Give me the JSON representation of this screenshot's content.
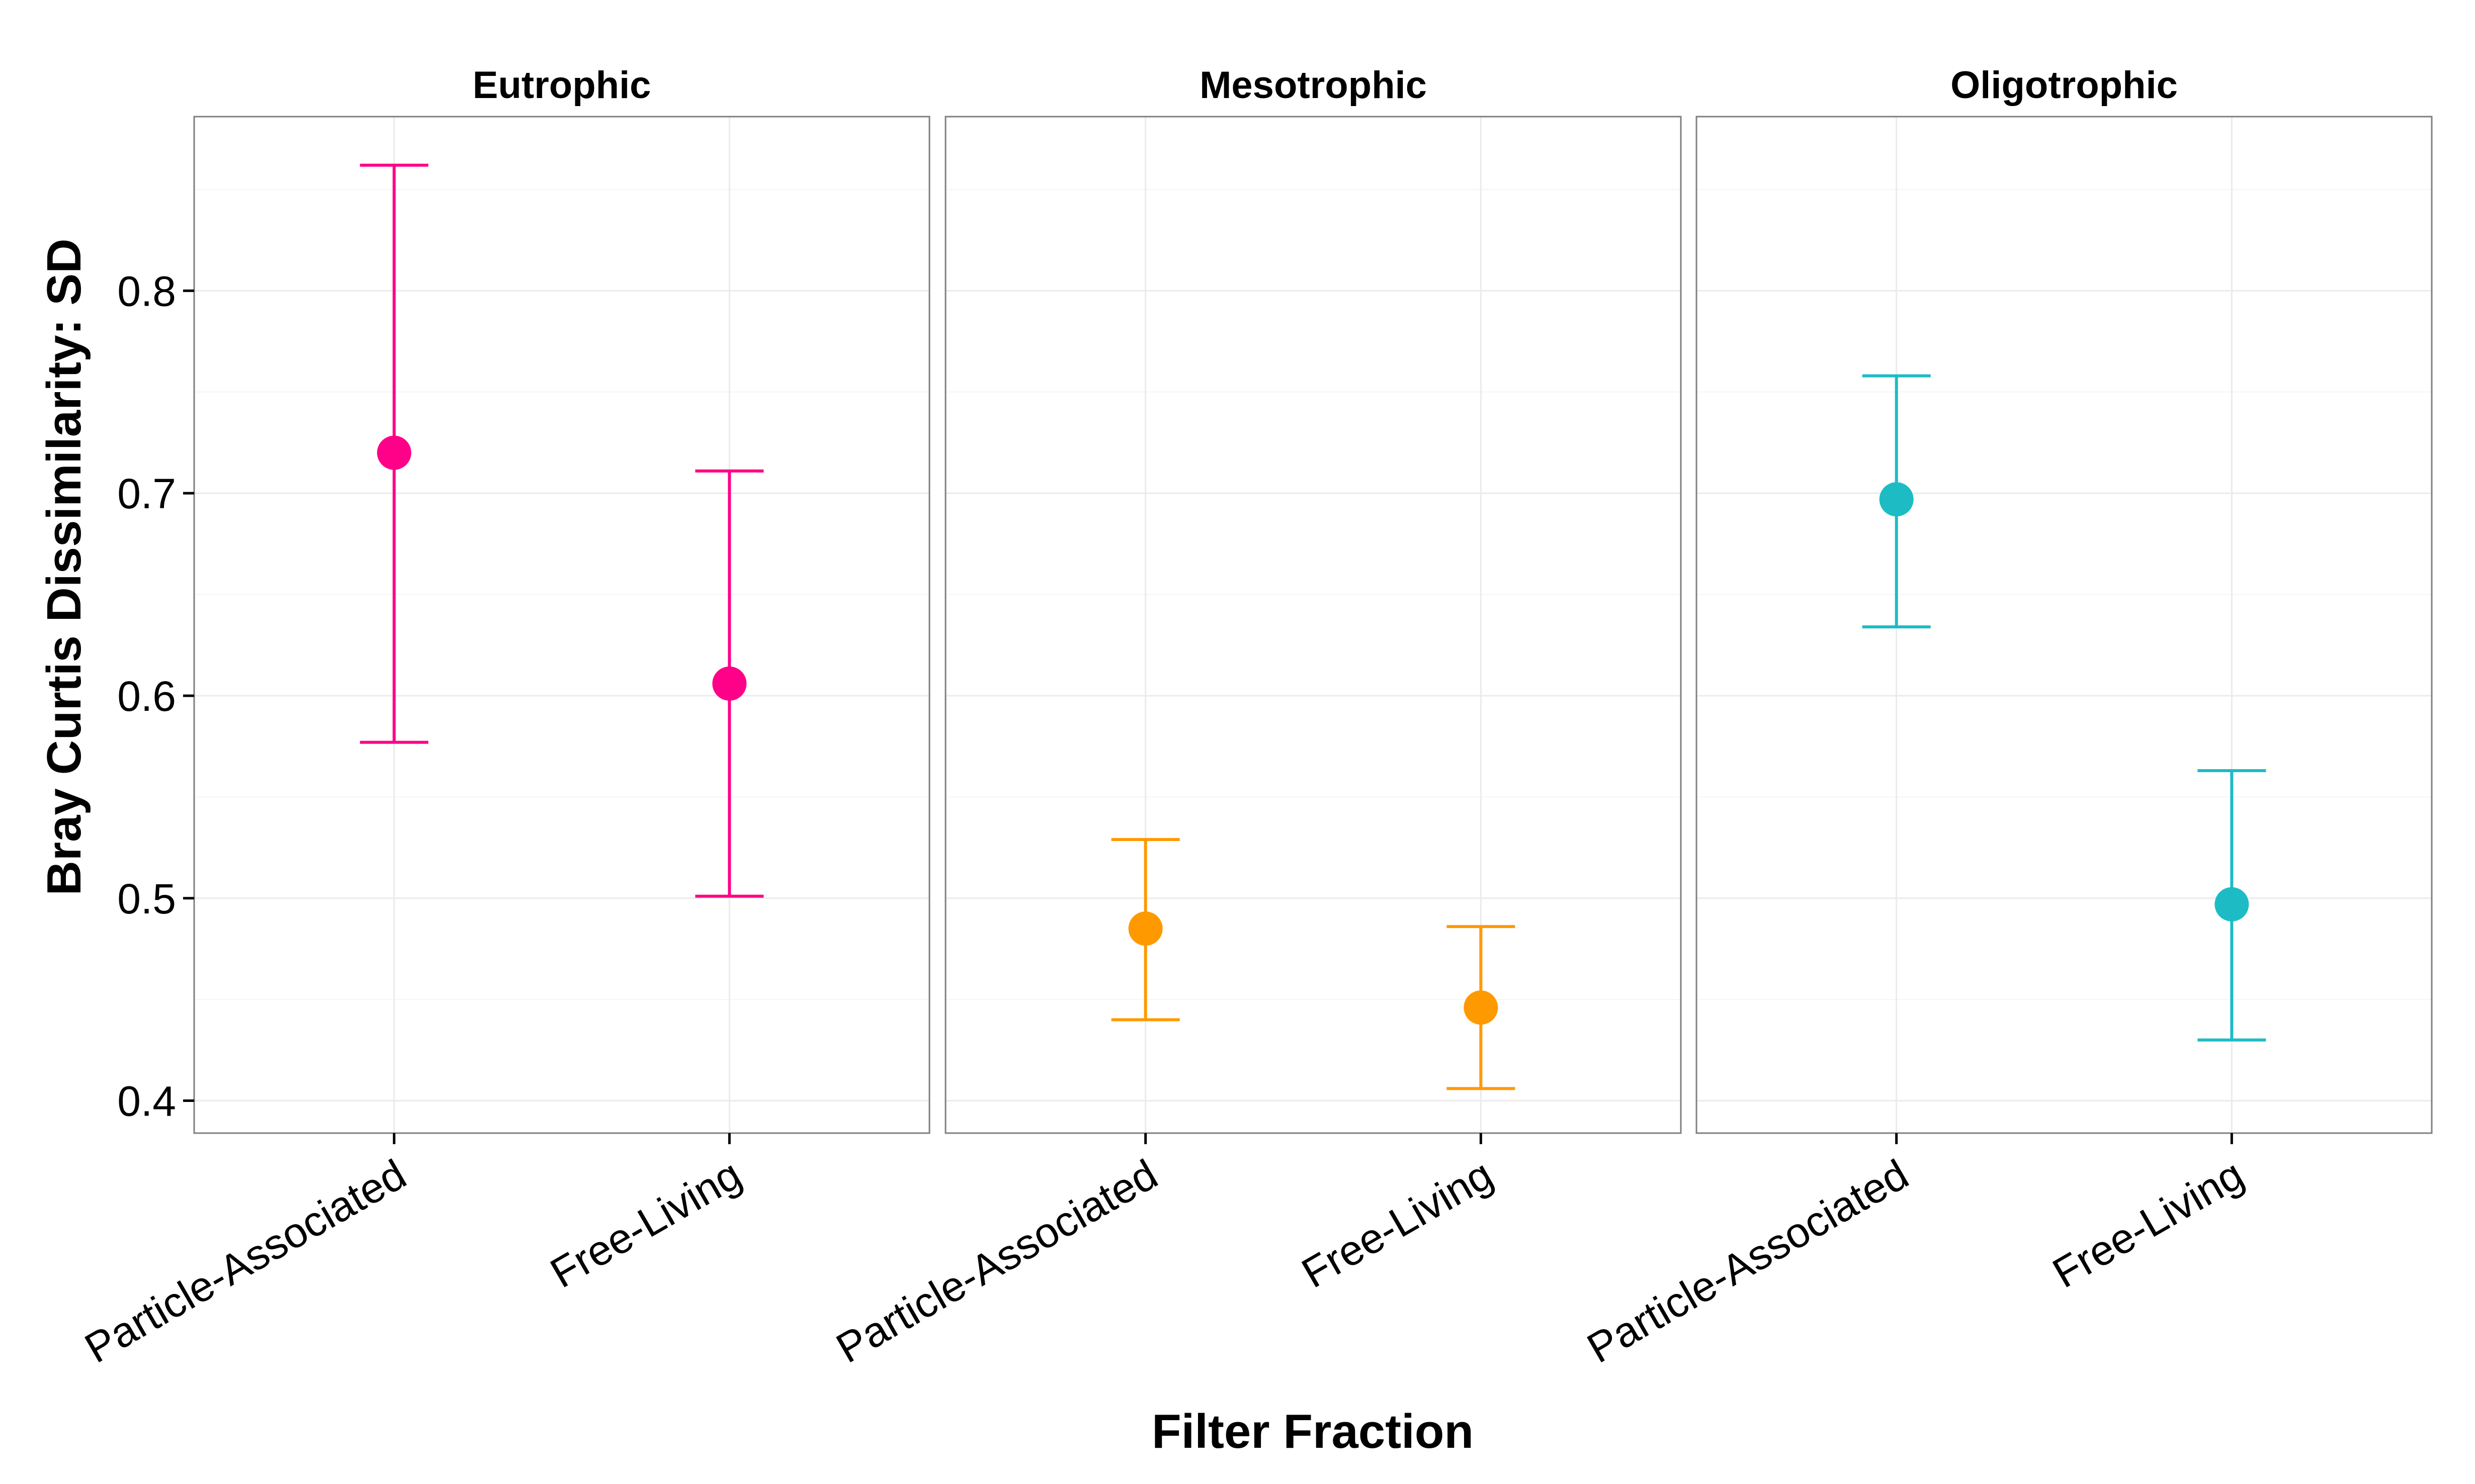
{
  "chart_data": {
    "type": "scatter",
    "subtype": "point-with-error-bars, faceted",
    "xlabel": "Filter Fraction",
    "ylabel": "Bray Curtis Dissimilarity: SD",
    "ylim": [
      0.384,
      0.886
    ],
    "yticks": [
      0.4,
      0.5,
      0.6,
      0.7,
      0.8
    ],
    "ytick_labels": [
      "0.4",
      "0.5",
      "0.6",
      "0.7",
      "0.8"
    ],
    "categories": [
      "Particle-Associated",
      "Free-Living"
    ],
    "grid": true,
    "legend": "none",
    "facets": [
      {
        "title": "Eutrophic",
        "color": "#FF0088",
        "points": [
          {
            "category": "Particle-Associated",
            "y": 0.72,
            "ymin": 0.577,
            "ymax": 0.862
          },
          {
            "category": "Free-Living",
            "y": 0.606,
            "ymin": 0.501,
            "ymax": 0.711
          }
        ]
      },
      {
        "title": "Mesotrophic",
        "color": "#FF9900",
        "points": [
          {
            "category": "Particle-Associated",
            "y": 0.485,
            "ymin": 0.44,
            "ymax": 0.529
          },
          {
            "category": "Free-Living",
            "y": 0.446,
            "ymin": 0.406,
            "ymax": 0.486
          }
        ]
      },
      {
        "title": "Oligotrophic",
        "color": "#1DBCC4",
        "points": [
          {
            "category": "Particle-Associated",
            "y": 0.697,
            "ymin": 0.634,
            "ymax": 0.758
          },
          {
            "category": "Free-Living",
            "y": 0.497,
            "ymin": 0.43,
            "ymax": 0.563
          }
        ]
      }
    ]
  }
}
